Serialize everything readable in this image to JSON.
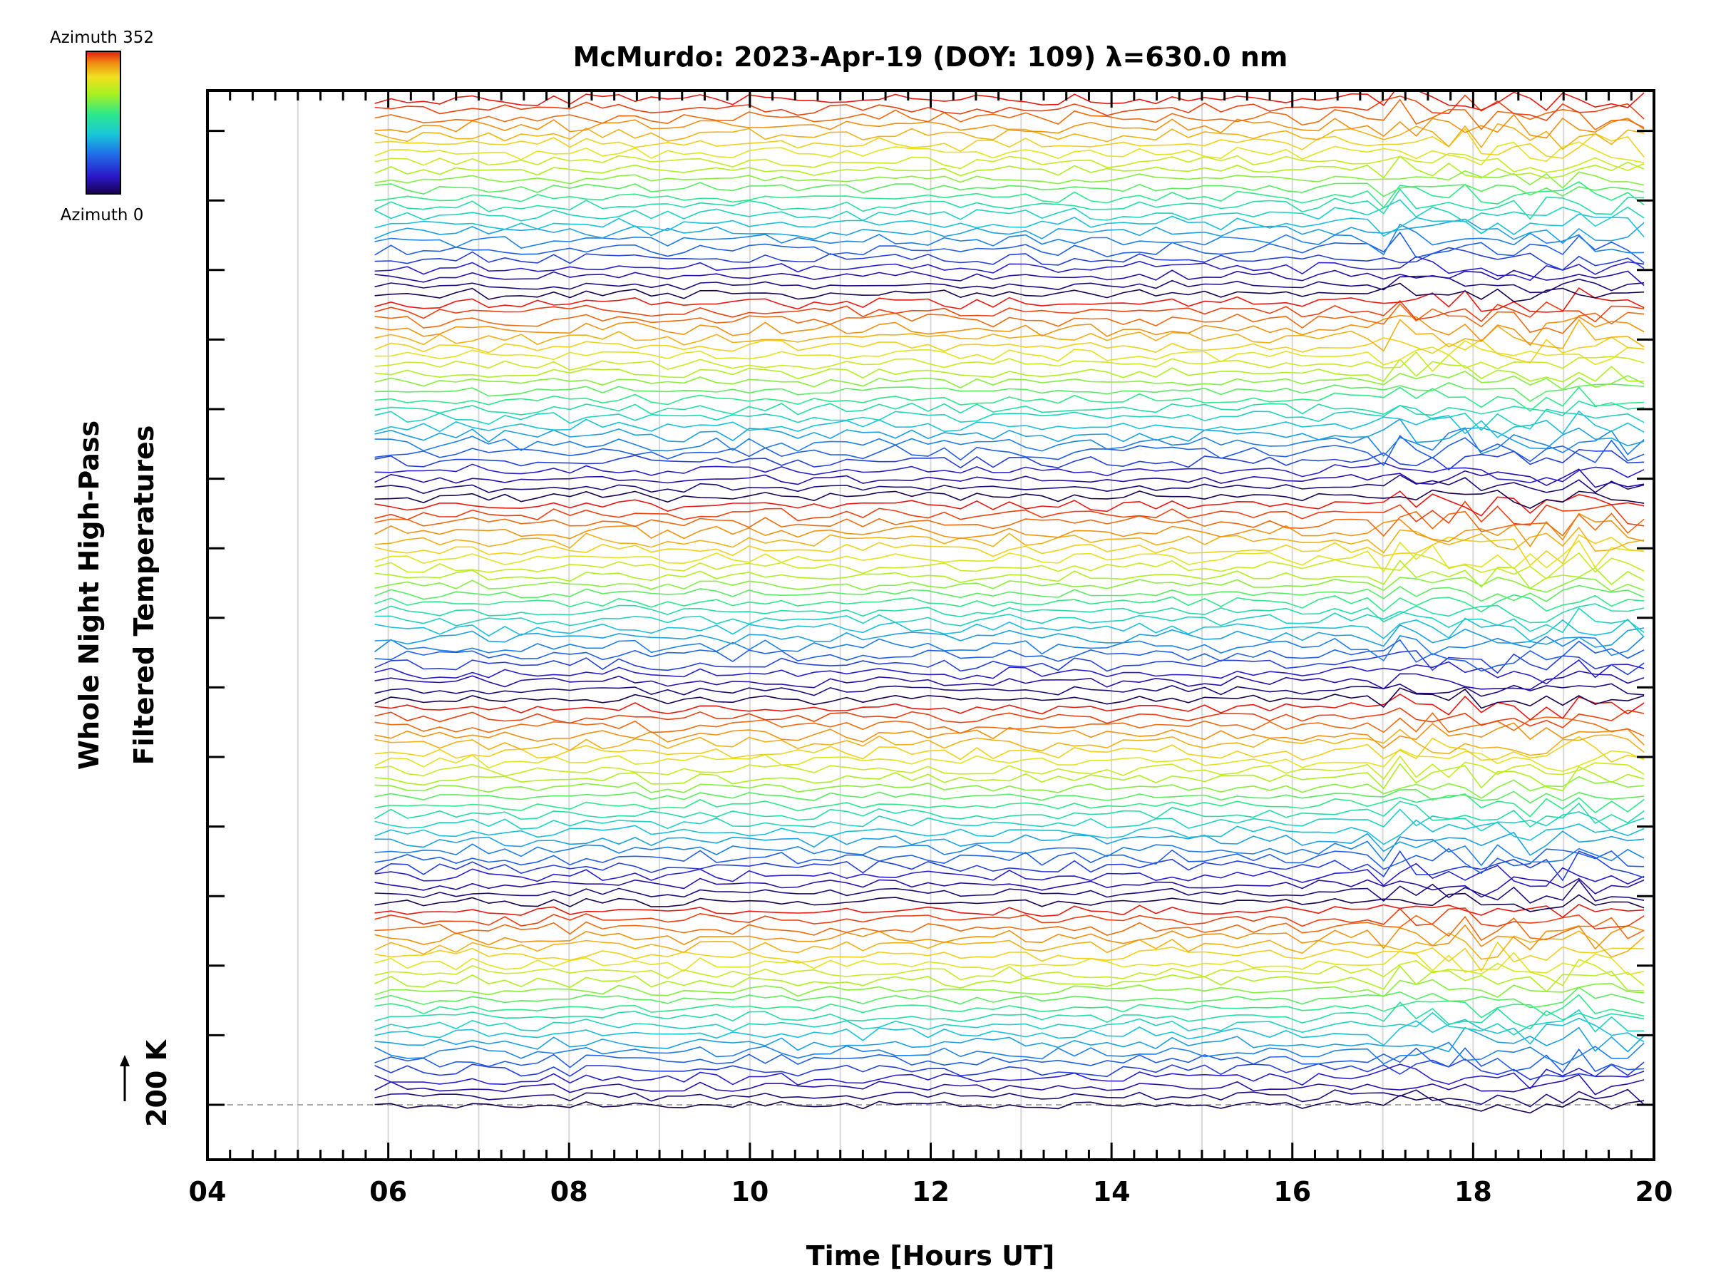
{
  "chart_data": {
    "type": "line",
    "title": "McMurdo: 2023-Apr-19 (DOY: 109) λ=630.0 nm",
    "xlabel": "Time [Hours UT]",
    "ylabel_line1": "Whole Night High-Pass",
    "ylabel_line2": "Filtered Temperatures",
    "xlim": [
      4,
      20
    ],
    "x_ticks": [
      "04",
      "06",
      "08",
      "10",
      "12",
      "14",
      "16",
      "18",
      "20"
    ],
    "y_reference_label": "200 K",
    "data_start_hour": 5.85,
    "data_end_hour": 20.0,
    "n_traces": 115,
    "colorbar": {
      "top_label": "Azimuth 352",
      "bottom_label": "Azimuth 0",
      "colors": [
        "#1a004f",
        "#2a18c8",
        "#1f6fe8",
        "#19c8d8",
        "#2ee88a",
        "#a8f020",
        "#f0e020",
        "#f08a10",
        "#e81810"
      ]
    }
  }
}
